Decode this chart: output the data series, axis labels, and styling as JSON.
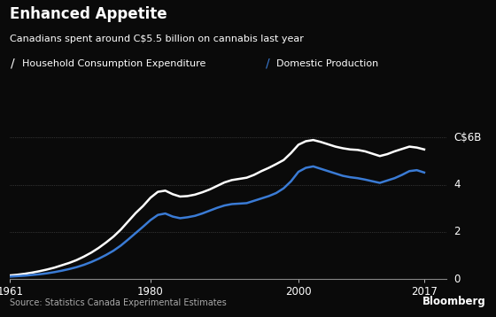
{
  "title": "Enhanced Appetite",
  "subtitle": "Canadians spent around C$5.5 billion on cannabis last year",
  "source": "Source: Statistics Canada Experimental Estimates",
  "legend": [
    "Household Consumption Expenditure",
    "Domestic Production"
  ],
  "line_colors": [
    "#ffffff",
    "#3a7bd5"
  ],
  "background_color": "#0a0a0a",
  "text_color": "#ffffff",
  "grid_color": "#555555",
  "xlim": [
    1961,
    2020
  ],
  "ylim": [
    0,
    7
  ],
  "xticks": [
    1961,
    1980,
    2000,
    2017
  ],
  "yticks_right": [
    0,
    2,
    4
  ],
  "c6b_val": 6,
  "years": [
    1961,
    1962,
    1963,
    1964,
    1965,
    1966,
    1967,
    1968,
    1969,
    1970,
    1971,
    1972,
    1973,
    1974,
    1975,
    1976,
    1977,
    1978,
    1979,
    1980,
    1981,
    1982,
    1983,
    1984,
    1985,
    1986,
    1987,
    1988,
    1989,
    1990,
    1991,
    1992,
    1993,
    1994,
    1995,
    1996,
    1997,
    1998,
    1999,
    2000,
    2001,
    2002,
    2003,
    2004,
    2005,
    2006,
    2007,
    2008,
    2009,
    2010,
    2011,
    2012,
    2013,
    2014,
    2015,
    2016,
    2017
  ],
  "household": [
    0.15,
    0.18,
    0.22,
    0.27,
    0.33,
    0.4,
    0.48,
    0.58,
    0.68,
    0.8,
    0.95,
    1.12,
    1.32,
    1.55,
    1.8,
    2.1,
    2.45,
    2.8,
    3.1,
    3.45,
    3.7,
    3.75,
    3.6,
    3.5,
    3.52,
    3.58,
    3.68,
    3.8,
    3.95,
    4.1,
    4.2,
    4.25,
    4.3,
    4.42,
    4.58,
    4.72,
    4.88,
    5.05,
    5.35,
    5.7,
    5.85,
    5.9,
    5.82,
    5.72,
    5.62,
    5.55,
    5.5,
    5.48,
    5.42,
    5.32,
    5.22,
    5.3,
    5.42,
    5.52,
    5.62,
    5.58,
    5.5
  ],
  "domestic": [
    0.1,
    0.12,
    0.14,
    0.17,
    0.2,
    0.24,
    0.29,
    0.35,
    0.42,
    0.5,
    0.6,
    0.72,
    0.86,
    1.02,
    1.2,
    1.42,
    1.68,
    1.95,
    2.22,
    2.5,
    2.72,
    2.78,
    2.65,
    2.58,
    2.62,
    2.68,
    2.78,
    2.9,
    3.02,
    3.12,
    3.18,
    3.2,
    3.22,
    3.32,
    3.42,
    3.52,
    3.65,
    3.85,
    4.15,
    4.55,
    4.72,
    4.78,
    4.68,
    4.58,
    4.48,
    4.38,
    4.32,
    4.28,
    4.22,
    4.15,
    4.08,
    4.18,
    4.28,
    4.42,
    4.58,
    4.62,
    4.52
  ]
}
